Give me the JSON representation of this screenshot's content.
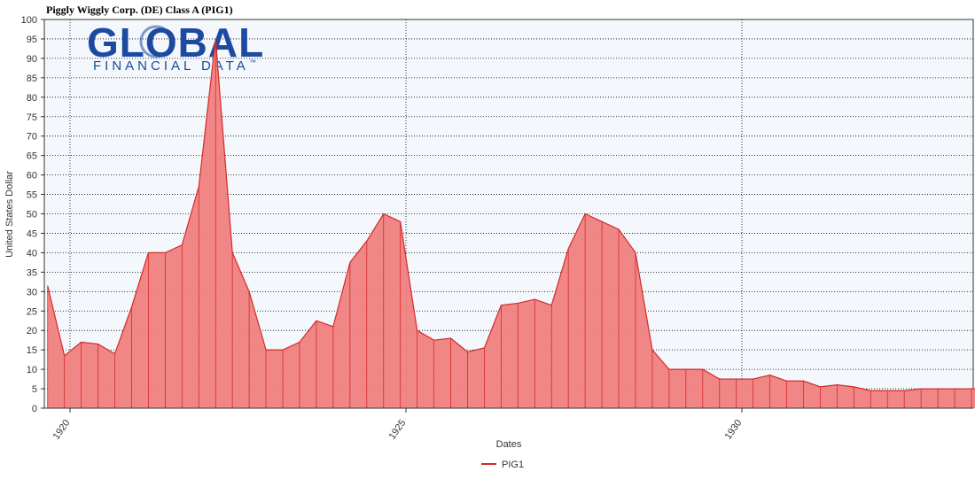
{
  "title": "Piggly Wiggly Corp. (DE) Class A (PIG1)",
  "logo": {
    "main": "GLOBAL",
    "sub": "FINANCIAL DATA",
    "tm": "™"
  },
  "colors": {
    "fill": "#f08080",
    "line": "#d42a2a",
    "plot_bg": "#f4f8fc",
    "grid": "#000000"
  },
  "chart_data": {
    "type": "area",
    "title": "Piggly Wiggly Corp. (DE) Class A (PIG1)",
    "xlabel": "Dates",
    "ylabel": "United States Dollar",
    "x_ticks": [
      "1920",
      "1925",
      "1930"
    ],
    "ylim": [
      0,
      100
    ],
    "y_ticks": [
      0,
      5,
      10,
      15,
      20,
      25,
      30,
      35,
      40,
      45,
      50,
      55,
      60,
      65,
      70,
      75,
      80,
      85,
      90,
      95,
      100
    ],
    "grid": true,
    "legend": "bottom-center",
    "series": [
      {
        "name": "PIG1",
        "x": [
          "1919-09",
          "1919-12",
          "1920-03",
          "1920-06",
          "1920-09",
          "1920-12",
          "1921-03",
          "1921-06",
          "1921-09",
          "1921-12",
          "1922-03",
          "1922-06",
          "1922-09",
          "1922-12",
          "1923-03",
          "1923-06",
          "1923-09",
          "1923-12",
          "1924-03",
          "1924-06",
          "1924-09",
          "1924-12",
          "1925-03",
          "1925-06",
          "1925-09",
          "1925-12",
          "1926-03",
          "1926-06",
          "1926-09",
          "1926-12",
          "1927-03",
          "1927-06",
          "1927-09",
          "1927-12",
          "1928-03",
          "1928-06",
          "1928-09",
          "1928-12",
          "1929-03",
          "1929-06",
          "1929-09",
          "1929-12",
          "1930-03",
          "1930-06",
          "1930-09",
          "1930-12",
          "1931-03",
          "1931-06",
          "1931-09",
          "1931-12",
          "1932-03",
          "1932-06",
          "1932-09",
          "1932-12",
          "1933-03",
          "1933-06",
          "1933-09"
        ],
        "values": [
          31.5,
          13.5,
          17,
          16.5,
          14,
          26,
          40,
          40,
          42,
          57,
          95,
          40,
          30,
          15,
          15,
          17,
          22.5,
          21,
          37.5,
          43,
          50,
          48,
          20,
          17.5,
          18,
          14.5,
          15.5,
          26.5,
          27,
          28,
          26.5,
          41,
          50,
          48,
          46,
          40,
          15,
          10,
          10,
          10,
          7.5,
          7.5,
          7.5,
          8.5,
          7,
          7,
          5.5,
          6,
          5.5,
          4.5,
          4.5,
          4.5,
          5,
          5,
          5,
          5,
          5
        ]
      }
    ]
  }
}
